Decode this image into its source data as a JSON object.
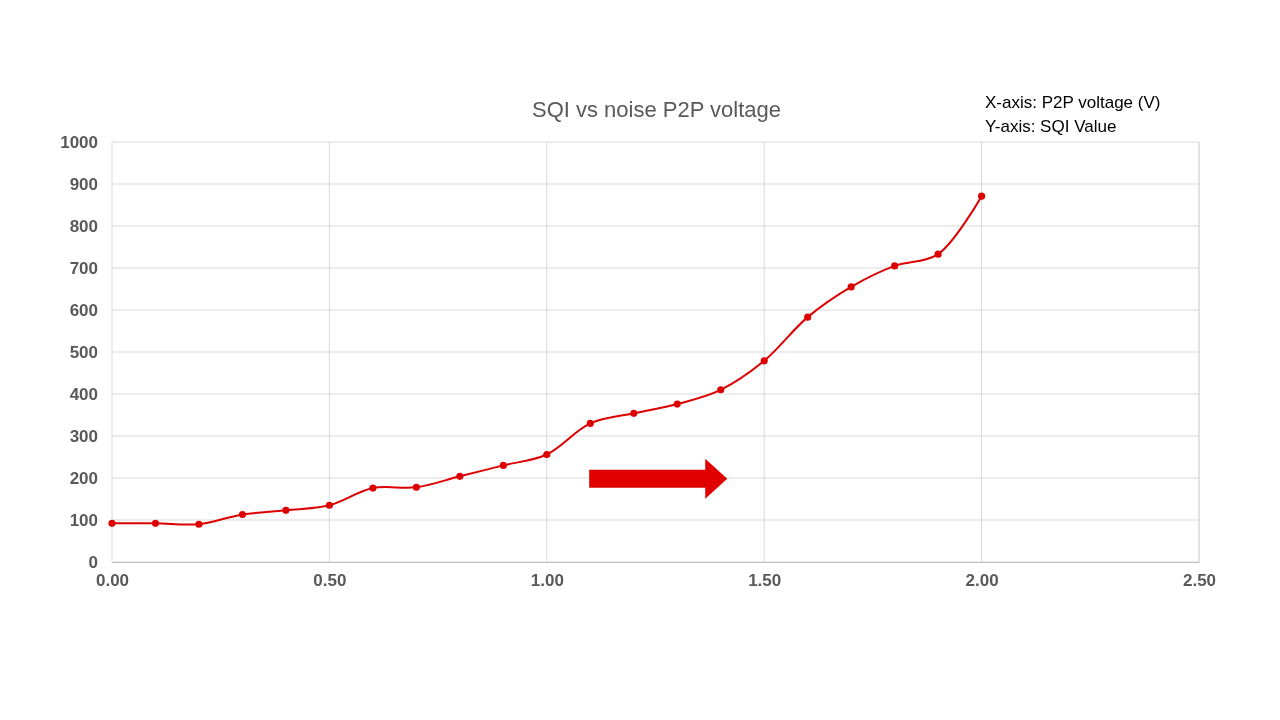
{
  "chart_data": {
    "type": "line",
    "title": "SQI vs noise P2P voltage",
    "annotations": [
      "X-axis: P2P voltage (V)",
      "Y-axis: SQI Value"
    ],
    "x": [
      0,
      0.1,
      0.2,
      0.3,
      0.4,
      0.5,
      0.6,
      0.7,
      0.8,
      0.9,
      1.0,
      1.1,
      1.2,
      1.3,
      1.4,
      1.5,
      1.6,
      1.7,
      1.8,
      1.9,
      2.0
    ],
    "series": [
      {
        "color": "#dd0000",
        "values": [
          92,
          92,
          90,
          113,
          123,
          135,
          176,
          178,
          204,
          230,
          256,
          330,
          354,
          376,
          410,
          479,
          583,
          655,
          705,
          733,
          871
        ]
      }
    ],
    "xlim": [
      0,
      2.5
    ],
    "xticks": [
      {
        "value": 0,
        "label": "0.00"
      },
      {
        "value": 0.5,
        "label": "0.50"
      },
      {
        "value": 1,
        "label": "1.00"
      },
      {
        "value": 1.5,
        "label": "1.50"
      },
      {
        "value": 2,
        "label": "2.00"
      },
      {
        "value": 2.5,
        "label": "2.50"
      }
    ],
    "ylim": [
      0,
      1000
    ],
    "yticks": [
      0,
      100,
      200,
      300,
      400,
      500,
      600,
      700,
      800,
      900,
      1000
    ],
    "grid": true,
    "marker": "circle",
    "line_style": "solid"
  }
}
